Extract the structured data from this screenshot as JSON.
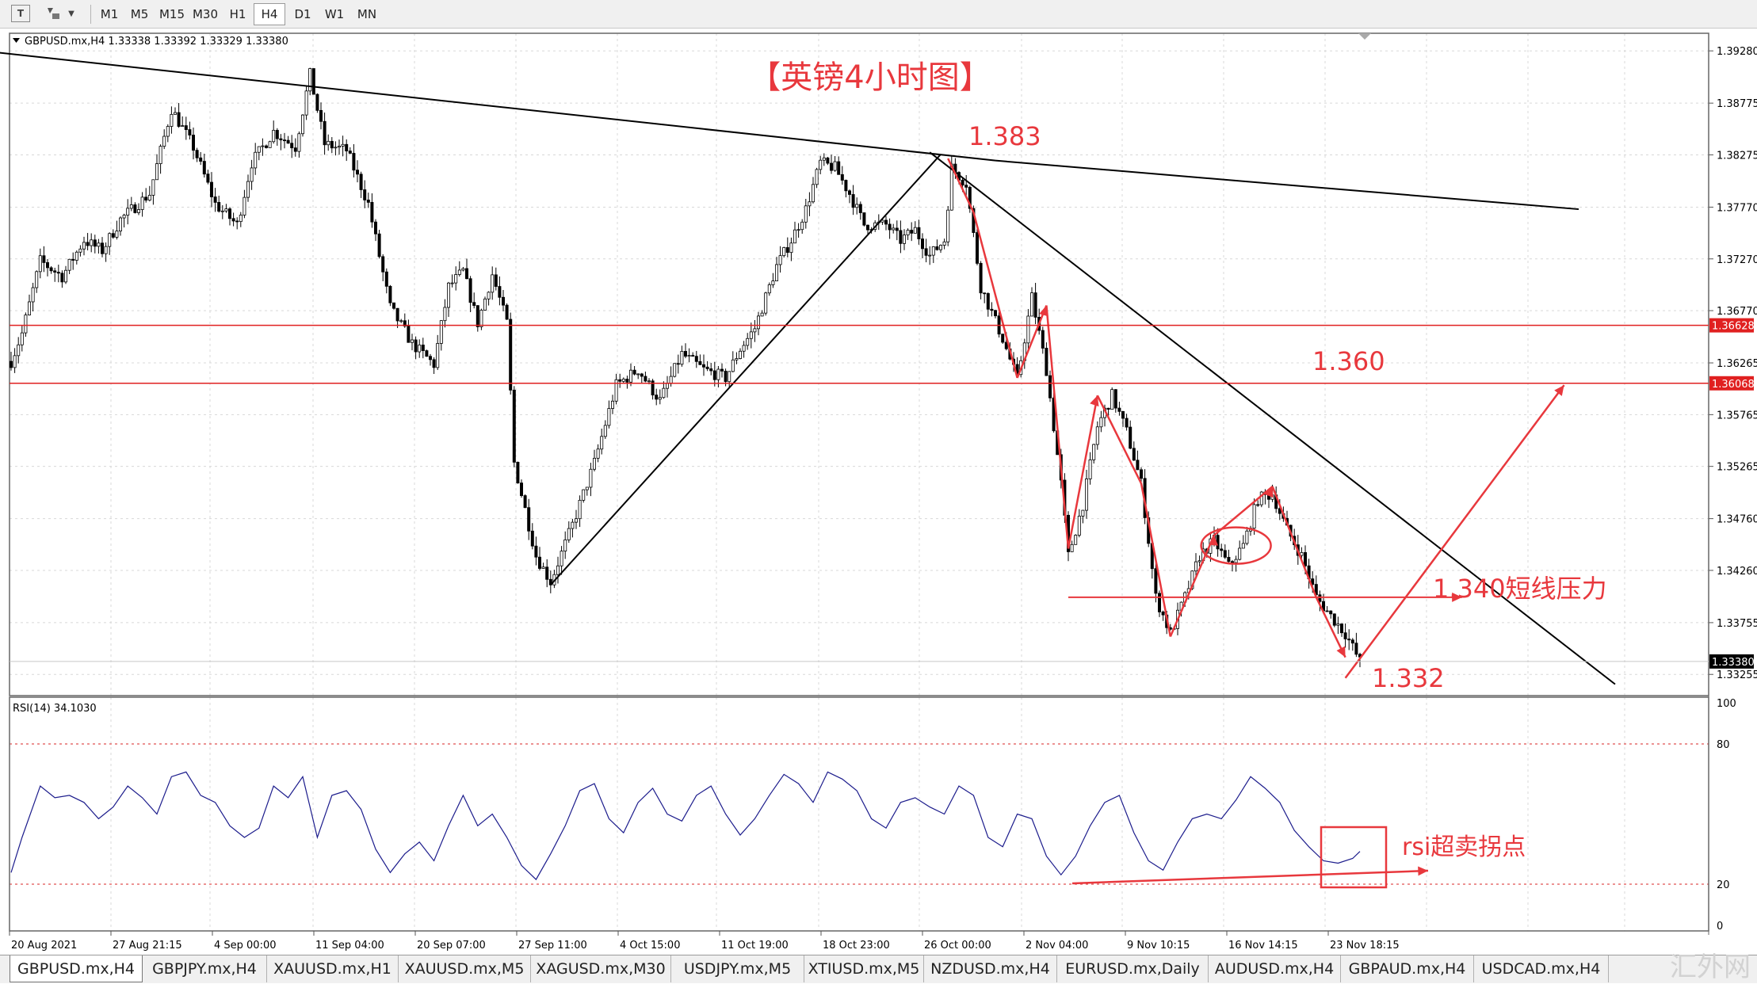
{
  "toolbar": {
    "icons": [
      "text-icon",
      "objects-icon",
      "dropdown-icon"
    ],
    "timeframes": [
      "M1",
      "M5",
      "M15",
      "M30",
      "H1",
      "H4",
      "D1",
      "W1",
      "MN"
    ],
    "active_timeframe": "H4"
  },
  "main_chart": {
    "info": "GBPUSD.mx,H4  1.33338 1.33392 1.33329 1.33380",
    "title": "【英镑4小时图】",
    "price_ticks": [
      "1.39280",
      "1.38775",
      "1.38275",
      "1.37770",
      "1.37270",
      "1.36770",
      "1.36265",
      "1.35765",
      "1.35265",
      "1.34760",
      "1.34260",
      "1.33755",
      "1.33255"
    ],
    "price_labels": [
      {
        "value": "1.36628",
        "color": "#e02020"
      },
      {
        "value": "1.36068",
        "color": "#e02020"
      },
      {
        "value": "1.33380",
        "color": "#000000"
      }
    ],
    "annotations": [
      "1.383",
      "1.360",
      "1.340短线压力",
      "1.332"
    ],
    "accent_color": "#e8383d"
  },
  "rsi": {
    "label": "RSI(14) 34.1030",
    "ticks": [
      "100",
      "80",
      "20",
      "0"
    ],
    "annotation": "rsi超卖拐点",
    "line_color": "#1c1c8c"
  },
  "time_axis": [
    "20 Aug 2021",
    "27 Aug 21:15",
    "4 Sep 00:00",
    "11 Sep 04:00",
    "20 Sep 07:00",
    "27 Sep 11:00",
    "4 Oct 15:00",
    "11 Oct 19:00",
    "18 Oct 23:00",
    "26 Oct 00:00",
    "2 Nov 04:00",
    "9 Nov 10:15",
    "16 Nov 14:15",
    "23 Nov 18:15"
  ],
  "tabs": [
    "GBPUSD.mx,H4",
    "GBPJPY.mx,H4",
    "XAUUSD.mx,H1",
    "XAUUSD.mx,M5",
    "XAGUSD.mx,M30",
    "USDJPY.mx,M5",
    "XTIUSD.mx,M5",
    "NZDUSD.mx,H4",
    "EURUSD.mx,Daily",
    "AUDUSD.mx,H4",
    "GBPAUD.mx,H4",
    "USDCAD.mx,H4"
  ],
  "active_tab": "GBPUSD.mx,H4",
  "watermark": "汇外网",
  "chart_data": [
    {
      "type": "candlestick",
      "symbol": "GBPUSD.mx",
      "timeframe": "H4",
      "ylim": [
        1.3305,
        1.3945
      ],
      "close_path": [
        [
          0,
          1.3628
        ],
        [
          3,
          1.3655
        ],
        [
          8,
          1.3725
        ],
        [
          14,
          1.371
        ],
        [
          20,
          1.3745
        ],
        [
          25,
          1.3735
        ],
        [
          30,
          1.3765
        ],
        [
          38,
          1.379
        ],
        [
          44,
          1.3872
        ],
        [
          50,
          1.3835
        ],
        [
          56,
          1.378
        ],
        [
          62,
          1.376
        ],
        [
          66,
          1.382
        ],
        [
          72,
          1.385
        ],
        [
          78,
          1.3835
        ],
        [
          82,
          1.3905
        ],
        [
          86,
          1.3838
        ],
        [
          92,
          1.3832
        ],
        [
          98,
          1.378
        ],
        [
          104,
          1.368
        ],
        [
          110,
          1.3645
        ],
        [
          116,
          1.3625
        ],
        [
          120,
          1.37
        ],
        [
          124,
          1.3715
        ],
        [
          128,
          1.3665
        ],
        [
          132,
          1.3712
        ],
        [
          136,
          1.3665
        ],
        [
          138,
          1.353
        ],
        [
          144,
          1.344
        ],
        [
          148,
          1.3415
        ],
        [
          154,
          1.347
        ],
        [
          160,
          1.353
        ],
        [
          166,
          1.3605
        ],
        [
          172,
          1.362
        ],
        [
          178,
          1.359
        ],
        [
          184,
          1.3635
        ],
        [
          190,
          1.362
        ],
        [
          196,
          1.3612
        ],
        [
          200,
          1.364
        ],
        [
          204,
          1.366
        ],
        [
          210,
          1.372
        ],
        [
          214,
          1.3745
        ],
        [
          218,
          1.3775
        ],
        [
          222,
          1.382
        ],
        [
          226,
          1.3815
        ],
        [
          230,
          1.379
        ],
        [
          234,
          1.376
        ],
        [
          240,
          1.376
        ],
        [
          244,
          1.3745
        ],
        [
          248,
          1.3755
        ],
        [
          252,
          1.373
        ],
        [
          256,
          1.3745
        ],
        [
          258,
          1.3815
        ],
        [
          262,
          1.38
        ],
        [
          266,
          1.37
        ],
        [
          272,
          1.365
        ],
        [
          276,
          1.361
        ],
        [
          280,
          1.369
        ],
        [
          284,
          1.362
        ],
        [
          288,
          1.351
        ],
        [
          290,
          1.344
        ],
        [
          294,
          1.349
        ],
        [
          298,
          1.3565
        ],
        [
          302,
          1.3595
        ],
        [
          306,
          1.356
        ],
        [
          310,
          1.351
        ],
        [
          314,
          1.34
        ],
        [
          318,
          1.3365
        ],
        [
          322,
          1.34
        ],
        [
          326,
          1.344
        ],
        [
          330,
          1.3455
        ],
        [
          334,
          1.343
        ],
        [
          338,
          1.345
        ],
        [
          342,
          1.3495
        ],
        [
          346,
          1.35
        ],
        [
          350,
          1.3465
        ],
        [
          354,
          1.344
        ],
        [
          358,
          1.34
        ],
        [
          362,
          1.3382
        ],
        [
          366,
          1.3365
        ],
        [
          370,
          1.3338
        ]
      ]
    },
    {
      "type": "line",
      "name": "RSI(14)",
      "ylim": [
        0,
        100
      ],
      "levels": [
        80,
        20
      ],
      "x": [
        0,
        3,
        8,
        12,
        16,
        20,
        24,
        28,
        32,
        36,
        40,
        44,
        48,
        52,
        56,
        60,
        64,
        68,
        72,
        76,
        80,
        84,
        88,
        92,
        96,
        100,
        104,
        108,
        112,
        116,
        120,
        124,
        128,
        132,
        136,
        140,
        144,
        148,
        152,
        156,
        160,
        164,
        168,
        172,
        176,
        180,
        184,
        188,
        192,
        196,
        200,
        204,
        208,
        212,
        216,
        220,
        224,
        228,
        232,
        236,
        240,
        244,
        248,
        252,
        256,
        260,
        264,
        268,
        272,
        276,
        280,
        284,
        288,
        292,
        296,
        300,
        304,
        308,
        312,
        316,
        320,
        324,
        328,
        332,
        336,
        340,
        344,
        348,
        352,
        356,
        360,
        364,
        368,
        370
      ],
      "values": [
        25,
        40,
        62,
        57,
        58,
        55,
        48,
        53,
        62,
        57,
        50,
        66,
        68,
        58,
        55,
        45,
        40,
        44,
        62,
        57,
        66,
        40,
        58,
        60,
        52,
        35,
        25,
        33,
        38,
        30,
        45,
        58,
        45,
        50,
        40,
        28,
        22,
        33,
        45,
        60,
        63,
        48,
        42,
        55,
        61,
        50,
        47,
        58,
        62,
        50,
        41,
        48,
        58,
        67,
        63,
        55,
        68,
        65,
        60,
        48,
        44,
        55,
        57,
        53,
        50,
        62,
        58,
        40,
        36,
        50,
        48,
        32,
        24,
        32,
        45,
        55,
        58,
        42,
        30,
        26,
        38,
        48,
        50,
        48,
        56,
        66,
        61,
        55,
        43,
        36,
        30,
        29,
        31,
        34
      ]
    }
  ]
}
